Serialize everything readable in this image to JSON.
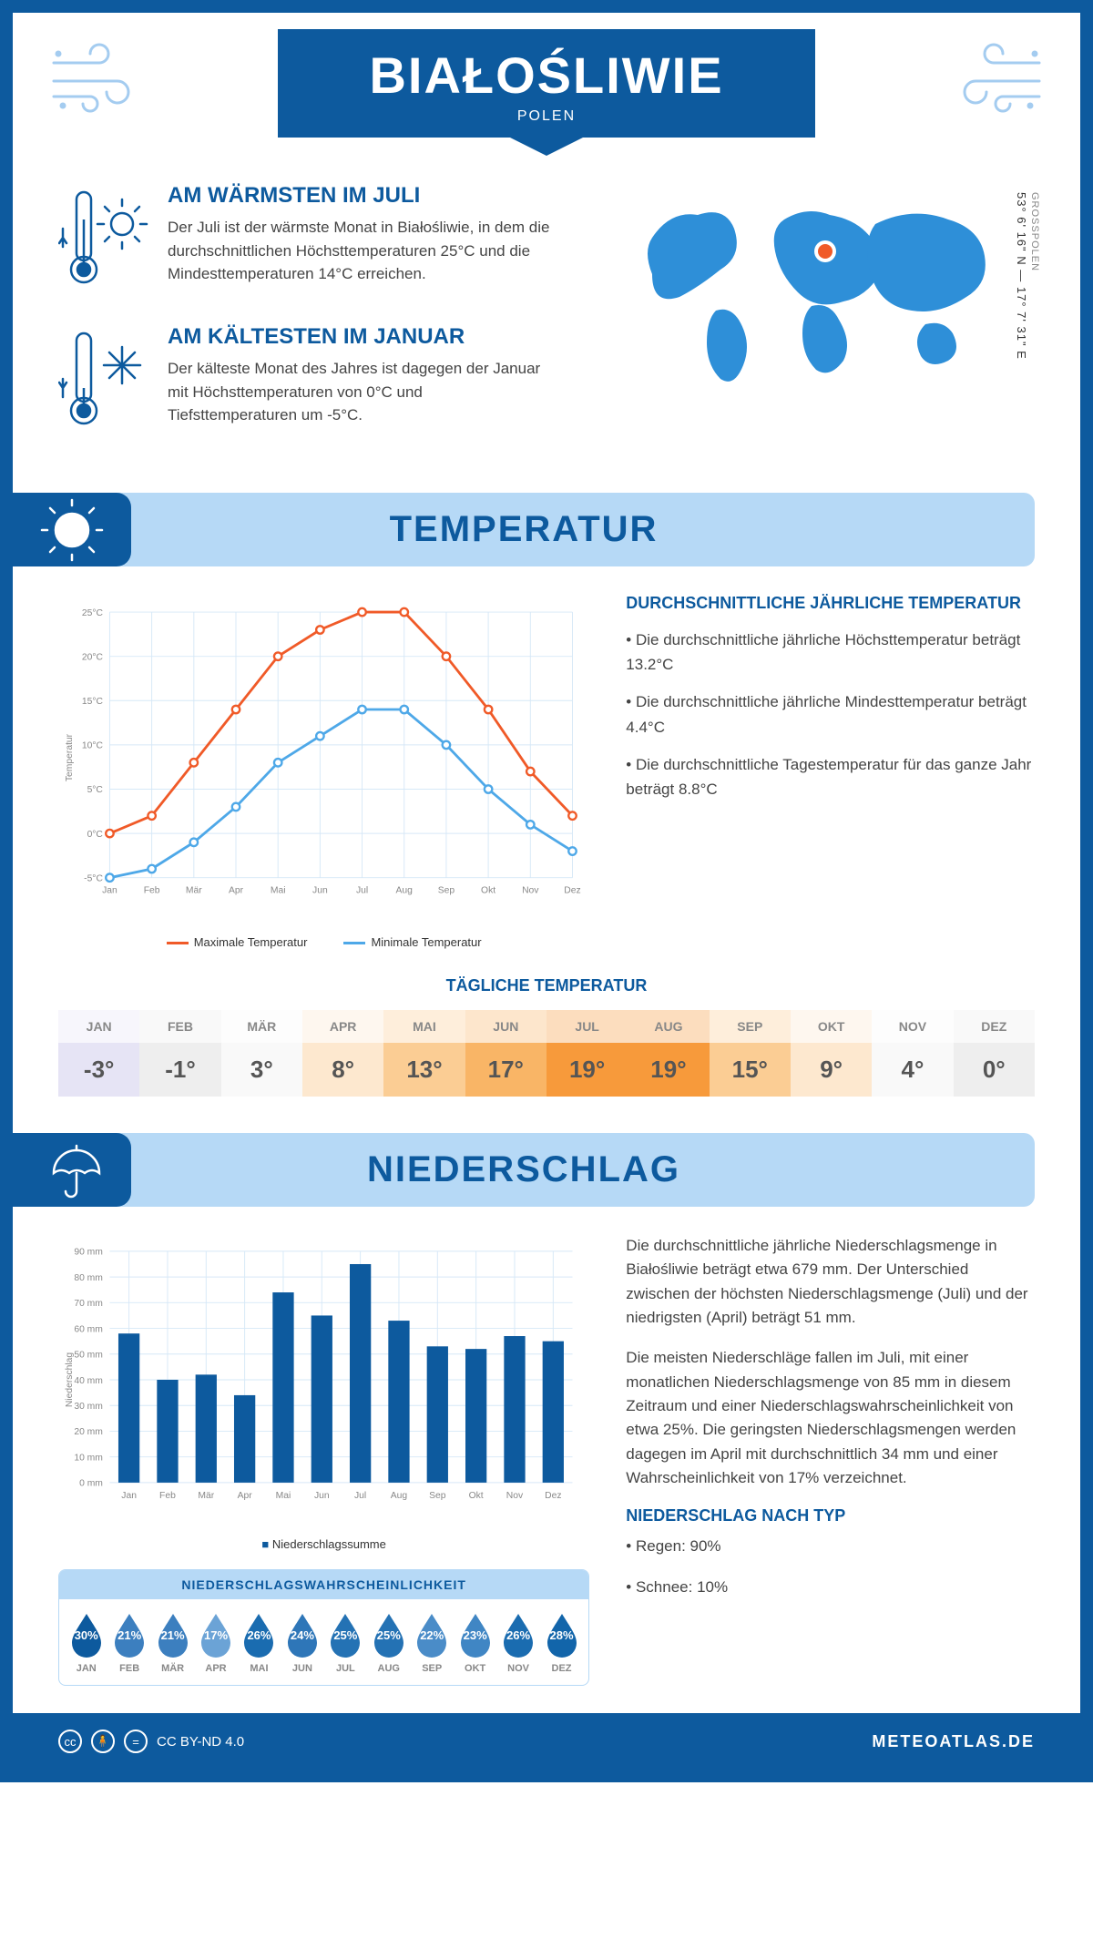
{
  "header": {
    "city": "BIAŁOŚLIWIE",
    "country": "POLEN"
  },
  "coords": {
    "region": "GROSSPOLEN",
    "lat": "53° 6' 16\" N",
    "lon": "17° 7' 31\" E"
  },
  "summaries": {
    "warm": {
      "title": "AM WÄRMSTEN IM JULI",
      "text": "Der Juli ist der wärmste Monat in Białośliwie, in dem die durchschnittlichen Höchsttemperaturen 25°C und die Mindesttemperaturen 14°C erreichen."
    },
    "cold": {
      "title": "AM KÄLTESTEN IM JANUAR",
      "text": "Der kälteste Monat des Jahres ist dagegen der Januar mit Höchsttemperaturen von 0°C und Tiefsttemperaturen um -5°C."
    }
  },
  "sections": {
    "temperature": "TEMPERATUR",
    "precipitation": "NIEDERSCHLAG"
  },
  "temp_chart": {
    "type": "line",
    "months": [
      "Jan",
      "Feb",
      "Mär",
      "Apr",
      "Mai",
      "Jun",
      "Jul",
      "Aug",
      "Sep",
      "Okt",
      "Nov",
      "Dez"
    ],
    "max_values": [
      0,
      2,
      8,
      14,
      20,
      23,
      25,
      25,
      20,
      14,
      7,
      2
    ],
    "min_values": [
      -5,
      -4,
      -1,
      3,
      8,
      11,
      14,
      14,
      10,
      5,
      1,
      -2
    ],
    "max_color": "#f05a28",
    "min_color": "#4ea8e8",
    "ylabel": "Temperatur",
    "ylim": [
      -5,
      25
    ],
    "ytick_step": 5,
    "grid_color": "#d6e8f7",
    "legend_max": "Maximale Temperatur",
    "legend_min": "Minimale Temperatur"
  },
  "temp_info": {
    "heading": "DURCHSCHNITTLICHE JÄHRLICHE TEMPERATUR",
    "bullets": [
      "• Die durchschnittliche jährliche Höchsttemperatur beträgt 13.2°C",
      "• Die durchschnittliche jährliche Mindesttemperatur beträgt 4.4°C",
      "• Die durchschnittliche Tagestemperatur für das ganze Jahr beträgt 8.8°C"
    ]
  },
  "daily_temp": {
    "heading": "TÄGLICHE TEMPERATUR",
    "months": [
      "JAN",
      "FEB",
      "MÄR",
      "APR",
      "MAI",
      "JUN",
      "JUL",
      "AUG",
      "SEP",
      "OKT",
      "NOV",
      "DEZ"
    ],
    "values": [
      "-3°",
      "-1°",
      "3°",
      "8°",
      "13°",
      "17°",
      "19°",
      "19°",
      "15°",
      "9°",
      "4°",
      "0°"
    ],
    "colors": [
      "#e6e4f5",
      "#eeeeee",
      "#f9f9f9",
      "#fde8cf",
      "#fbcd94",
      "#f9b566",
      "#f79a3b",
      "#f79a3b",
      "#fbcd94",
      "#fde8cf",
      "#f9f9f9",
      "#eeeeee"
    ]
  },
  "precip_chart": {
    "type": "bar",
    "months": [
      "Jan",
      "Feb",
      "Mär",
      "Apr",
      "Mai",
      "Jun",
      "Jul",
      "Aug",
      "Sep",
      "Okt",
      "Nov",
      "Dez"
    ],
    "values": [
      58,
      40,
      42,
      34,
      74,
      65,
      85,
      63,
      53,
      52,
      57,
      55
    ],
    "bar_color": "#0d5a9e",
    "ylabel": "Niederschlag",
    "ylim": [
      0,
      90
    ],
    "ytick_step": 10,
    "grid_color": "#d6e8f7",
    "legend": "Niederschlagssumme"
  },
  "precip_info": {
    "para1": "Die durchschnittliche jährliche Niederschlagsmenge in Białośliwie beträgt etwa 679 mm. Der Unterschied zwischen der höchsten Niederschlagsmenge (Juli) und der niedrigsten (April) beträgt 51 mm.",
    "para2": "Die meisten Niederschläge fallen im Juli, mit einer monatlichen Niederschlagsmenge von 85 mm in diesem Zeitraum und einer Niederschlagswahrscheinlichkeit von etwa 25%. Die geringsten Niederschlagsmengen werden dagegen im April mit durchschnittlich 34 mm und einer Wahrscheinlichkeit von 17% verzeichnet.",
    "type_heading": "NIEDERSCHLAG NACH TYP",
    "type_rain": "• Regen: 90%",
    "type_snow": "• Schnee: 10%"
  },
  "precip_prob": {
    "heading": "NIEDERSCHLAGSWAHRSCHEINLICHKEIT",
    "months": [
      "JAN",
      "FEB",
      "MÄR",
      "APR",
      "MAI",
      "JUN",
      "JUL",
      "AUG",
      "SEP",
      "OKT",
      "NOV",
      "DEZ"
    ],
    "values": [
      "30%",
      "21%",
      "21%",
      "17%",
      "26%",
      "24%",
      "25%",
      "25%",
      "22%",
      "23%",
      "26%",
      "28%"
    ],
    "drop_colors": [
      "#0d5a9e",
      "#3c7fbf",
      "#3c7fbf",
      "#6ba3d6",
      "#1a6cb0",
      "#2e76b8",
      "#2472b4",
      "#2472b4",
      "#4a8cc8",
      "#4086c4",
      "#1a6cb0",
      "#1265aa"
    ]
  },
  "footer": {
    "license": "CC BY-ND 4.0",
    "brand": "METEOATLAS.DE"
  }
}
